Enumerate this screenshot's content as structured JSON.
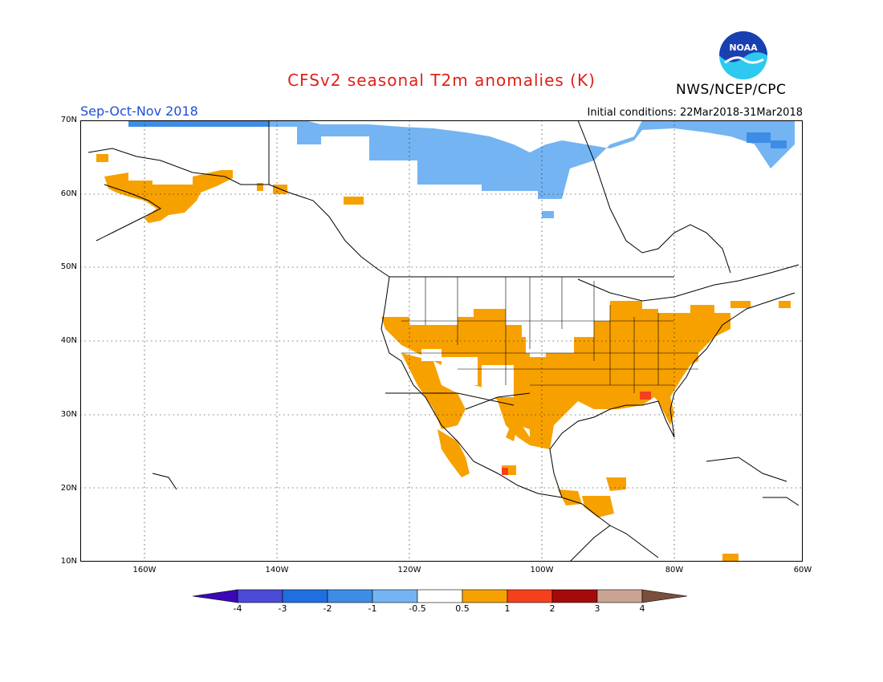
{
  "header": {
    "title": "CFSv2 seasonal T2m anomalies (K)",
    "agency": "NWS/NCEP/CPC",
    "season": "Sep-Oct-Nov 2018",
    "initial_conditions": "Initial conditions: 22Mar2018-31Mar2018",
    "logo_text": "NOAA"
  },
  "map": {
    "lat_labels": [
      "70N",
      "60N",
      "50N",
      "40N",
      "30N",
      "20N",
      "10N"
    ],
    "lon_labels": [
      "160W",
      "140W",
      "120W",
      "100W",
      "80W",
      "60W"
    ],
    "extent": {
      "lon_min": -172,
      "lon_max": -60,
      "lat_min": 10,
      "lat_max": 70
    },
    "grid": "dotted",
    "anomaly_regions": [
      {
        "name": "Arctic coast cooling",
        "category": "-1 to -0.5",
        "color": "#74b4f2"
      },
      {
        "name": "Arctic far north cooling",
        "category": "-2 to -1",
        "color": "#3d8de6"
      },
      {
        "name": "Alaska warming",
        "category": "0.5 to 1",
        "color": "#f7a100"
      },
      {
        "name": "Western US warming",
        "category": "0.5 to 1",
        "color": "#f7a100"
      },
      {
        "name": "Central & Eastern US warming",
        "category": "0.5 to 1",
        "color": "#f7a100"
      },
      {
        "name": "Georgia warm spot",
        "category": "1 to 2",
        "color": "#f5401c"
      },
      {
        "name": "Mexico warm spot",
        "category": "1 to 2",
        "color": "#f5401c"
      }
    ]
  },
  "colorbar": {
    "labels": [
      "-4",
      "-3",
      "-2",
      "-1",
      "-0.5",
      "0.5",
      "1",
      "2",
      "3",
      "4"
    ],
    "colors": [
      "#3b08b5",
      "#4a4ad6",
      "#1f6fe0",
      "#3d8de6",
      "#74b4f2",
      "#ffffff",
      "#f7a100",
      "#f5401c",
      "#a50a0a",
      "#c9a393",
      "#7a4f3e"
    ]
  }
}
